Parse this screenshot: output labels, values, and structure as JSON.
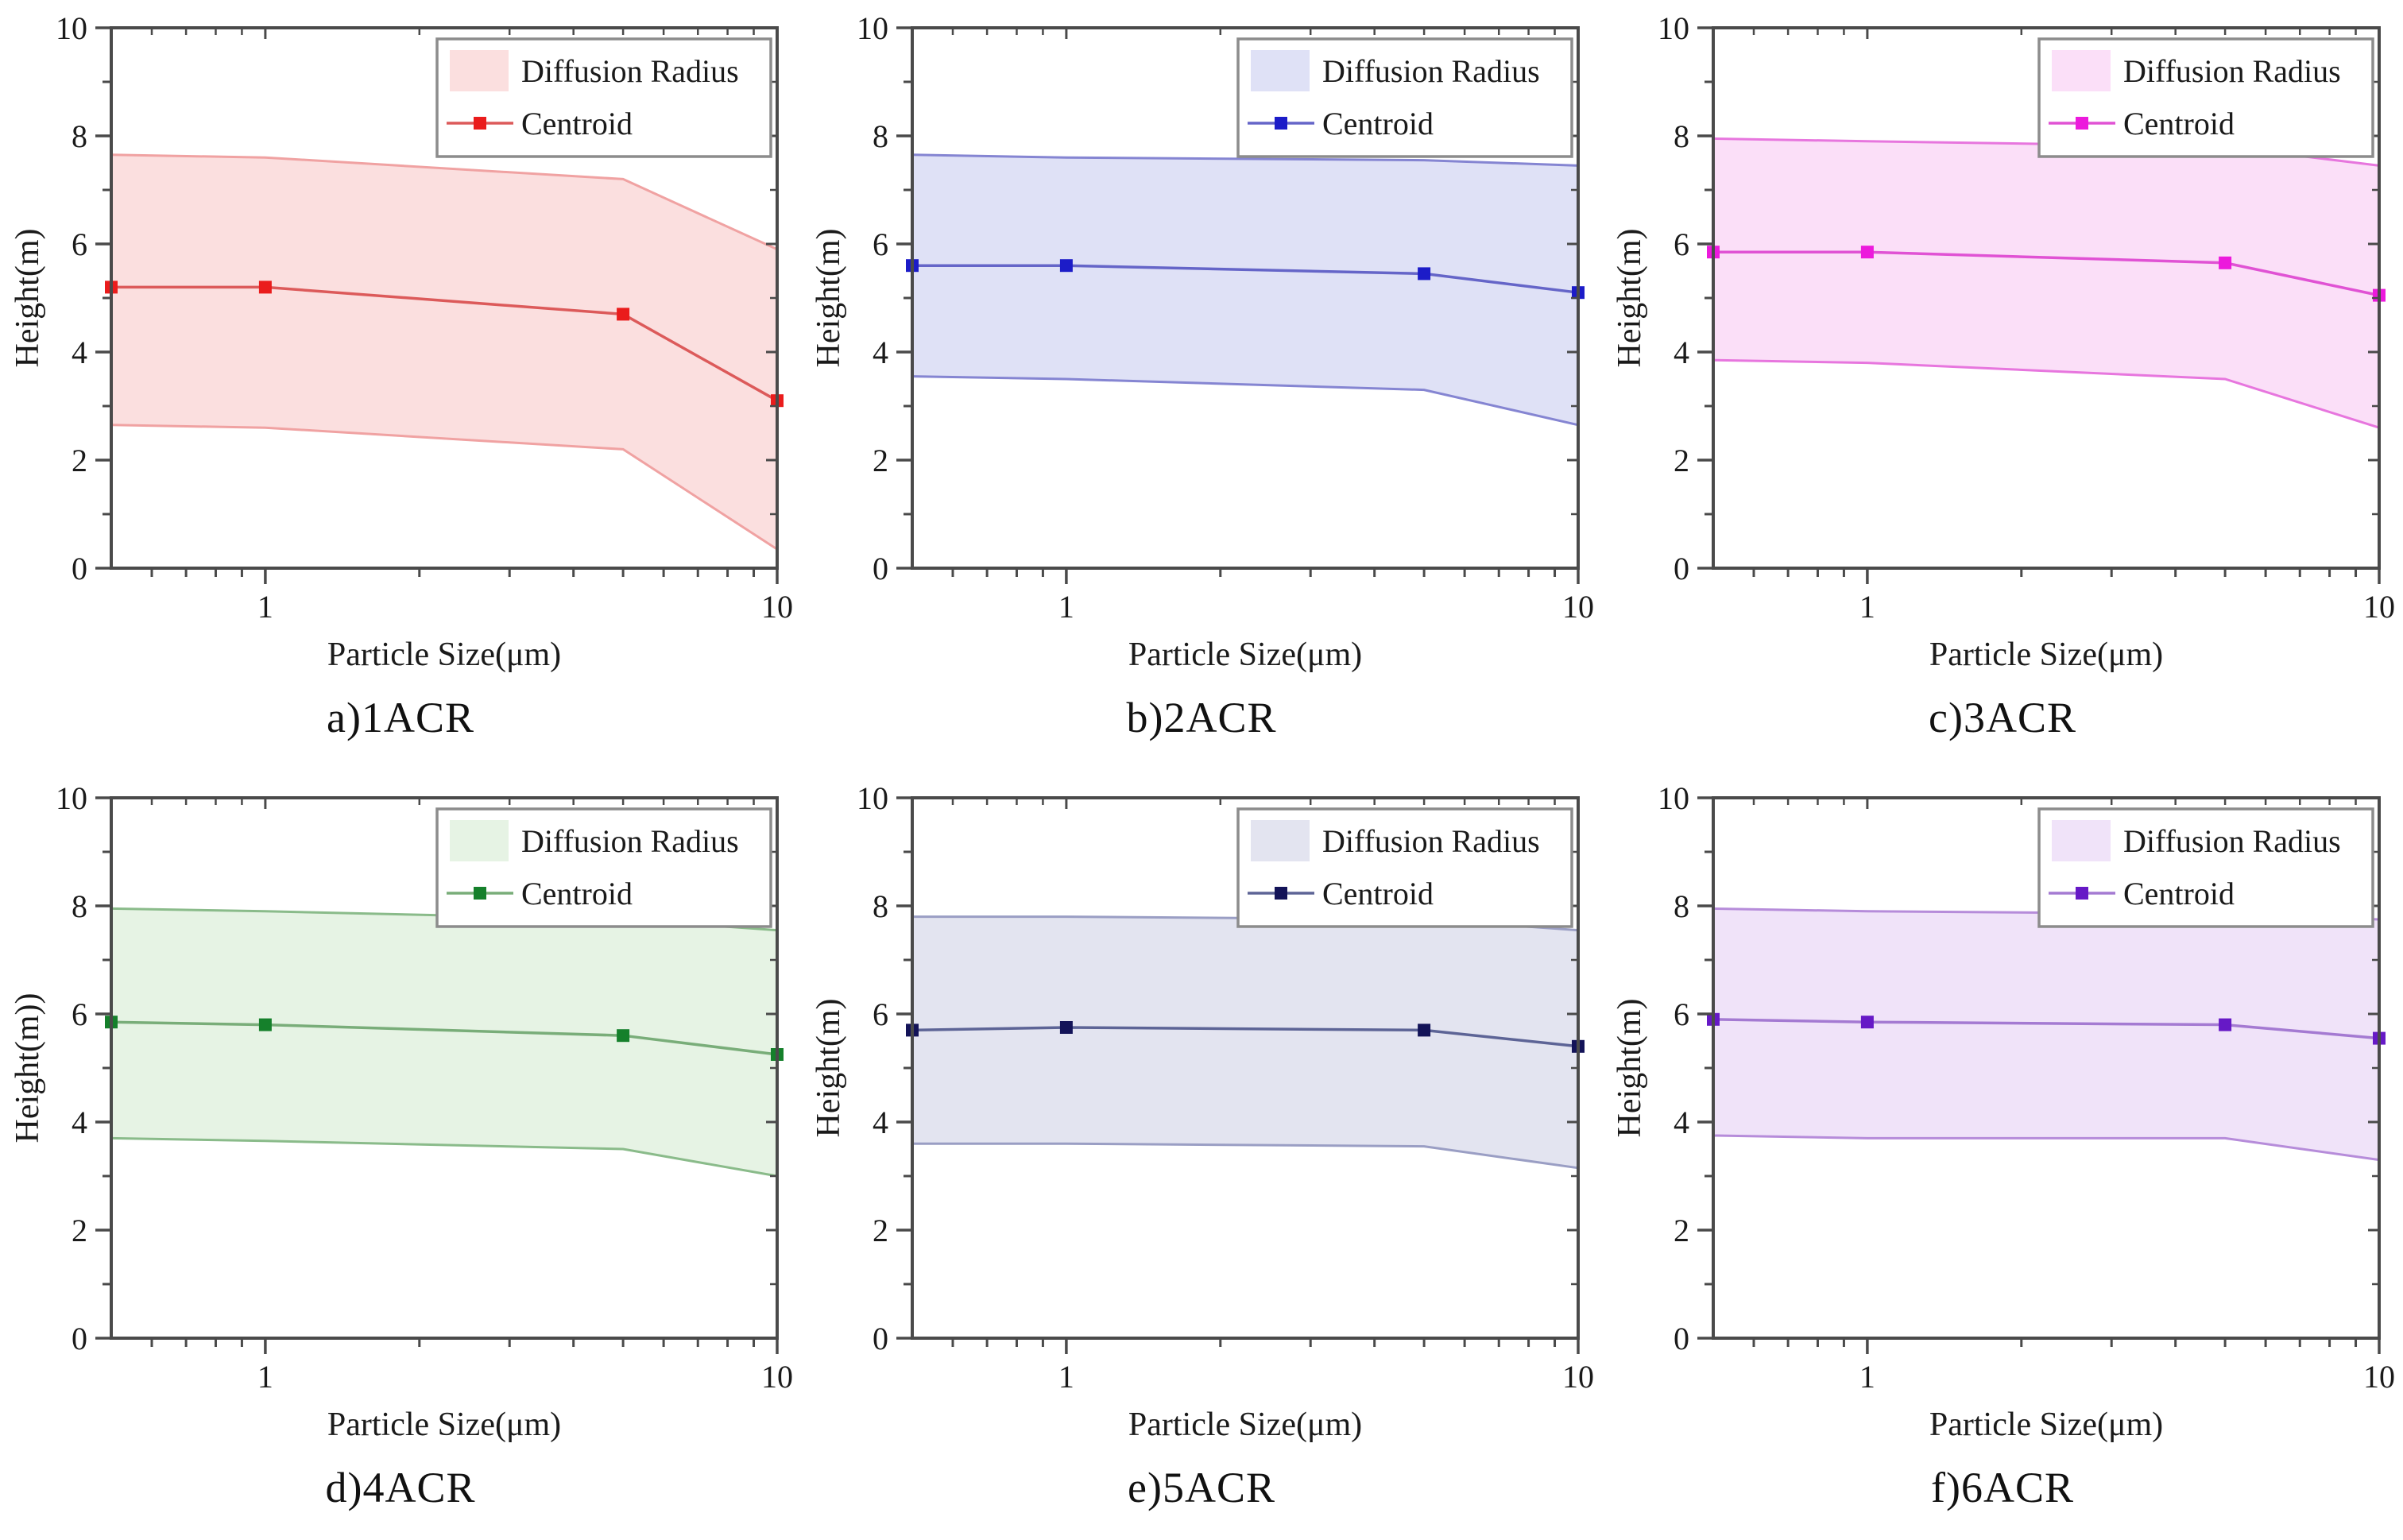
{
  "figure": {
    "legend_labels": [
      "Diffusion Radius",
      "Centroid"
    ],
    "x_axis_label": "Particle Size(μm)",
    "x_tick_labels": [
      "1",
      "10"
    ],
    "y_tick_labels": [
      "0",
      "2",
      "4",
      "6",
      "8",
      "10"
    ]
  },
  "chart_data": [
    {
      "type": "area",
      "panel_label": "a)1ACR",
      "xlabel": "Particle Size(μm)",
      "ylabel": "Height(m)",
      "x": [
        0.5,
        1,
        5,
        10
      ],
      "x_scale": "log",
      "xlim": [
        0.5,
        10
      ],
      "ylim": [
        0,
        10
      ],
      "x_major_ticks": [
        1,
        10
      ],
      "x_minor_ticks": [
        0.6,
        0.7,
        0.8,
        0.9,
        2,
        3,
        4,
        5,
        6,
        7,
        8,
        9
      ],
      "y_major_ticks": [
        0,
        2,
        4,
        6,
        8,
        10
      ],
      "y_minor_ticks": [
        1,
        3,
        5,
        7,
        9
      ],
      "legend": [
        "Diffusion Radius",
        "Centroid"
      ],
      "legend_position": "top-right",
      "grid": false,
      "series": [
        {
          "name": "Diffusion Radius Upper",
          "values": [
            7.65,
            7.6,
            7.2,
            5.9
          ]
        },
        {
          "name": "Centroid",
          "values": [
            5.2,
            5.2,
            4.7,
            3.1
          ]
        },
        {
          "name": "Diffusion Radius Lower",
          "values": [
            2.65,
            2.6,
            2.2,
            0.35
          ]
        }
      ],
      "colors": {
        "band_fill": "#fbdfdf",
        "band_edge": "#f0a2a2",
        "line": "#dc5a5a",
        "marker": "#ea1c1c"
      }
    },
    {
      "type": "area",
      "panel_label": "b)2ACR",
      "xlabel": "Particle Size(μm)",
      "ylabel": "Height(m)",
      "x": [
        0.5,
        1,
        5,
        10
      ],
      "x_scale": "log",
      "xlim": [
        0.5,
        10
      ],
      "ylim": [
        0,
        10
      ],
      "x_major_ticks": [
        1,
        10
      ],
      "x_minor_ticks": [
        0.6,
        0.7,
        0.8,
        0.9,
        2,
        3,
        4,
        5,
        6,
        7,
        8,
        9
      ],
      "y_major_ticks": [
        0,
        2,
        4,
        6,
        8,
        10
      ],
      "y_minor_ticks": [
        1,
        3,
        5,
        7,
        9
      ],
      "legend": [
        "Diffusion Radius",
        "Centroid"
      ],
      "legend_position": "top-right",
      "grid": false,
      "series": [
        {
          "name": "Diffusion Radius Upper",
          "values": [
            7.65,
            7.6,
            7.55,
            7.45
          ]
        },
        {
          "name": "Centroid",
          "values": [
            5.6,
            5.6,
            5.45,
            5.1
          ]
        },
        {
          "name": "Diffusion Radius Lower",
          "values": [
            3.55,
            3.5,
            3.3,
            2.65
          ]
        }
      ],
      "colors": {
        "band_fill": "#dfe1f6",
        "band_edge": "#8585d2",
        "line": "#6565c8",
        "marker": "#1c1cc8"
      }
    },
    {
      "type": "area",
      "panel_label": "c)3ACR",
      "xlabel": "Particle Size(μm)",
      "ylabel": "Height(m)",
      "x": [
        0.5,
        1,
        5,
        10
      ],
      "x_scale": "log",
      "xlim": [
        0.5,
        10
      ],
      "ylim": [
        0,
        10
      ],
      "x_major_ticks": [
        1,
        10
      ],
      "x_minor_ticks": [
        0.6,
        0.7,
        0.8,
        0.9,
        2,
        3,
        4,
        5,
        6,
        7,
        8,
        9
      ],
      "y_major_ticks": [
        0,
        2,
        4,
        6,
        8,
        10
      ],
      "y_minor_ticks": [
        1,
        3,
        5,
        7,
        9
      ],
      "legend": [
        "Diffusion Radius",
        "Centroid"
      ],
      "legend_position": "top-right",
      "grid": false,
      "series": [
        {
          "name": "Diffusion Radius Upper",
          "values": [
            7.95,
            7.9,
            7.8,
            7.45
          ]
        },
        {
          "name": "Centroid",
          "values": [
            5.85,
            5.85,
            5.65,
            5.05
          ]
        },
        {
          "name": "Diffusion Radius Lower",
          "values": [
            3.85,
            3.8,
            3.5,
            2.6
          ]
        }
      ],
      "colors": {
        "band_fill": "#fbdff8",
        "band_edge": "#e776de",
        "line": "#e052d4",
        "marker": "#ec1adc"
      }
    },
    {
      "type": "area",
      "panel_label": "d)4ACR",
      "xlabel": "Particle Size(μm)",
      "ylabel": "Height(m))",
      "x": [
        0.5,
        1,
        5,
        10
      ],
      "x_scale": "log",
      "xlim": [
        0.5,
        10
      ],
      "ylim": [
        0,
        10
      ],
      "x_major_ticks": [
        1,
        10
      ],
      "x_minor_ticks": [
        0.6,
        0.7,
        0.8,
        0.9,
        2,
        3,
        4,
        5,
        6,
        7,
        8,
        9
      ],
      "y_major_ticks": [
        0,
        2,
        4,
        6,
        8,
        10
      ],
      "y_minor_ticks": [
        1,
        3,
        5,
        7,
        9
      ],
      "legend": [
        "Diffusion Radius",
        "Centroid"
      ],
      "legend_position": "top-right",
      "grid": false,
      "series": [
        {
          "name": "Diffusion Radius Upper",
          "values": [
            7.95,
            7.9,
            7.75,
            7.55
          ]
        },
        {
          "name": "Centroid",
          "values": [
            5.85,
            5.8,
            5.6,
            5.25
          ]
        },
        {
          "name": "Diffusion Radius Lower",
          "values": [
            3.7,
            3.65,
            3.5,
            3.0
          ]
        }
      ],
      "colors": {
        "band_fill": "#e6f3e4",
        "band_edge": "#8abb8a",
        "line": "#79ad79",
        "marker": "#15802b"
      }
    },
    {
      "type": "area",
      "panel_label": "e)5ACR",
      "xlabel": "Particle Size(μm)",
      "ylabel": "Height(m)",
      "x": [
        0.5,
        1,
        5,
        10
      ],
      "x_scale": "log",
      "xlim": [
        0.5,
        10
      ],
      "ylim": [
        0,
        10
      ],
      "x_major_ticks": [
        1,
        10
      ],
      "x_minor_ticks": [
        0.6,
        0.7,
        0.8,
        0.9,
        2,
        3,
        4,
        5,
        6,
        7,
        8,
        9
      ],
      "y_major_ticks": [
        0,
        2,
        4,
        6,
        8,
        10
      ],
      "y_minor_ticks": [
        1,
        3,
        5,
        7,
        9
      ],
      "legend": [
        "Diffusion Radius",
        "Centroid"
      ],
      "legend_position": "top-right",
      "grid": false,
      "series": [
        {
          "name": "Diffusion Radius Upper",
          "values": [
            7.8,
            7.8,
            7.75,
            7.55
          ]
        },
        {
          "name": "Centroid",
          "values": [
            5.7,
            5.75,
            5.7,
            5.4
          ]
        },
        {
          "name": "Diffusion Radius Lower",
          "values": [
            3.6,
            3.6,
            3.55,
            3.15
          ]
        }
      ],
      "colors": {
        "band_fill": "#e3e4f0",
        "band_edge": "#9a9ec4",
        "line": "#5d6496",
        "marker": "#131358"
      }
    },
    {
      "type": "area",
      "panel_label": "f)6ACR",
      "xlabel": "Particle Size(μm)",
      "ylabel": "Height(m)",
      "x": [
        0.5,
        1,
        5,
        10
      ],
      "x_scale": "log",
      "xlim": [
        0.5,
        10
      ],
      "ylim": [
        0,
        10
      ],
      "x_major_ticks": [
        1,
        10
      ],
      "x_minor_ticks": [
        0.6,
        0.7,
        0.8,
        0.9,
        2,
        3,
        4,
        5,
        6,
        7,
        8,
        9
      ],
      "y_major_ticks": [
        0,
        2,
        4,
        6,
        8,
        10
      ],
      "y_minor_ticks": [
        1,
        3,
        5,
        7,
        9
      ],
      "legend": [
        "Diffusion Radius",
        "Centroid"
      ],
      "legend_position": "top-right",
      "grid": false,
      "series": [
        {
          "name": "Diffusion Radius Upper",
          "values": [
            7.95,
            7.9,
            7.85,
            7.75
          ]
        },
        {
          "name": "Centroid",
          "values": [
            5.9,
            5.85,
            5.8,
            5.55
          ]
        },
        {
          "name": "Diffusion Radius Lower",
          "values": [
            3.75,
            3.7,
            3.7,
            3.3
          ]
        }
      ],
      "colors": {
        "band_fill": "#f0e3f9",
        "band_edge": "#b68cda",
        "line": "#a47ad2",
        "marker": "#6619c6"
      }
    }
  ]
}
